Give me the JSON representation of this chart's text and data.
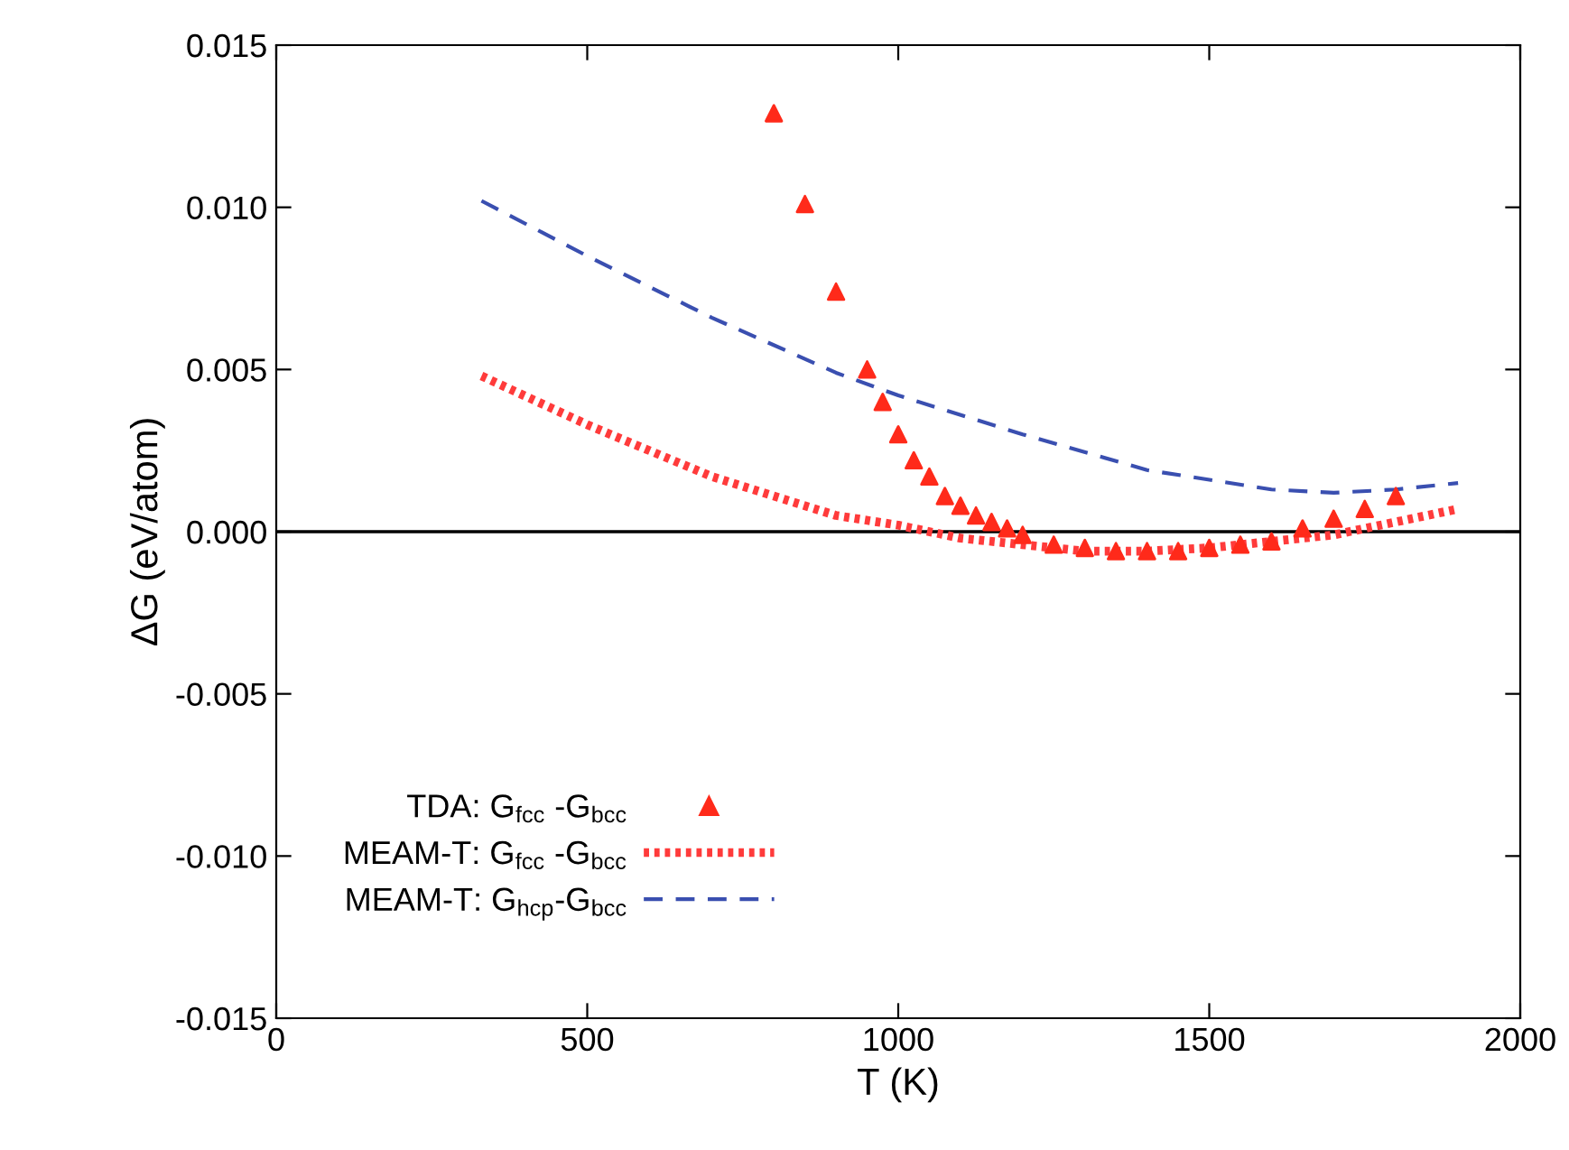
{
  "chart_data": {
    "type": "scatter",
    "xlabel": "T (K)",
    "ylabel": "ΔG (eV/atom)",
    "xlim": [
      0,
      2000
    ],
    "xticks": [
      0,
      500,
      1000,
      1500,
      2000
    ],
    "ylim": [
      -0.015,
      0.015
    ],
    "yticks": [
      {
        "value": -0.015,
        "label": "-0.015"
      },
      {
        "value": -0.01,
        "label": "-0.010"
      },
      {
        "value": -0.005,
        "label": "-0.005"
      },
      {
        "value": 0,
        "label": "0.000"
      },
      {
        "value": 0.005,
        "label": "0.005"
      },
      {
        "value": 0.01,
        "label": "0.010"
      },
      {
        "value": 0.015,
        "label": "0.015"
      }
    ],
    "grid": false,
    "legend": "bottom left",
    "ref_lines": [
      {
        "axis": "y",
        "value": 0,
        "color": "#000000"
      }
    ],
    "series": [
      {
        "name": "TDA: G$_{fcc}$ -G$_{bcc}$",
        "marker": "triangle",
        "color": "#ff2a1a",
        "x": [
          800,
          850,
          900,
          950,
          975,
          1000,
          1025,
          1050,
          1075,
          1100,
          1125,
          1150,
          1175,
          1200,
          1250,
          1300,
          1350,
          1400,
          1450,
          1500,
          1550,
          1600,
          1650,
          1700,
          1750,
          1800
        ],
        "values": [
          0.0129,
          0.0101,
          0.0074,
          0.005,
          0.004,
          0.003,
          0.0022,
          0.0017,
          0.0011,
          0.0008,
          0.0005,
          0.0003,
          0.0001,
          -0.0001,
          -0.0004,
          -0.0005,
          -0.0006,
          -0.0006,
          -0.0006,
          -0.0005,
          -0.0004,
          -0.0003,
          0.0001,
          0.0004,
          0.0007,
          0.0011
        ]
      },
      {
        "name": "MEAM-T: G$_{fcc}$ -G$_{bcc}$",
        "type": "line",
        "line_style": "dotted",
        "color": "#ff3b3b",
        "x": [
          330,
          500,
          700,
          900,
          1000,
          1100,
          1200,
          1300,
          1400,
          1500,
          1600,
          1700,
          1800,
          1900
        ],
        "values": [
          0.0048,
          0.0033,
          0.0017,
          0.0005,
          0.0002,
          -0.0002,
          -0.0004,
          -0.0006,
          -0.0006,
          -0.0005,
          -0.0003,
          -0.0001,
          0.0003,
          0.0007
        ]
      },
      {
        "name": "MEAM-T: G$_{hcp}$-G$_{bcc}$",
        "type": "line",
        "line_style": "dashed",
        "color": "#3a4fb0",
        "x": [
          330,
          500,
          700,
          900,
          1000,
          1200,
          1400,
          1600,
          1700,
          1800,
          1900
        ],
        "values": [
          0.0102,
          0.0085,
          0.0066,
          0.0049,
          0.0042,
          0.003,
          0.0019,
          0.0013,
          0.0012,
          0.0013,
          0.0015
        ]
      }
    ]
  }
}
